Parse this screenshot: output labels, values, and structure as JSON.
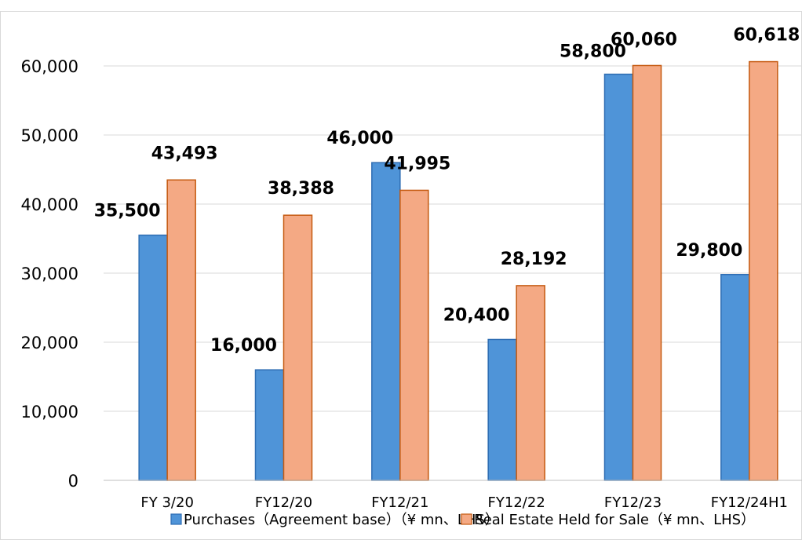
{
  "chart_data": {
    "type": "bar",
    "title": "",
    "xlabel": "",
    "ylabel": "",
    "categories": [
      "FY 3/20",
      "FY12/20",
      "FY12/21",
      "FY12/22",
      "FY12/23",
      "FY12/24H1"
    ],
    "series": [
      {
        "name": "Purchases（Agreement base）（¥ mn、LHS）",
        "color": "#4f94d8",
        "stroke": "#2e6db3",
        "values": [
          35500,
          16000,
          46000,
          20400,
          58800,
          29800
        ],
        "labels": [
          "35,500",
          "16,000",
          "46,000",
          "20,400",
          "58,800",
          "29,800"
        ]
      },
      {
        "name": "Real Estate Held for Sale（¥ mn、LHS）",
        "color": "#f4a984",
        "stroke": "#c55a11",
        "values": [
          43493,
          38388,
          41995,
          28192,
          60060,
          60618
        ],
        "labels": [
          "43,493",
          "38,388",
          "41,995",
          "28,192",
          "60,060",
          "60,618"
        ]
      }
    ],
    "ylim": [
      0,
      60000
    ],
    "yticks": [
      0,
      10000,
      20000,
      30000,
      40000,
      50000,
      60000
    ],
    "ytick_labels": [
      "0",
      "10,000",
      "20,000",
      "30,000",
      "40,000",
      "50,000",
      "60,000"
    ],
    "grid": true,
    "legend_position": "bottom"
  }
}
